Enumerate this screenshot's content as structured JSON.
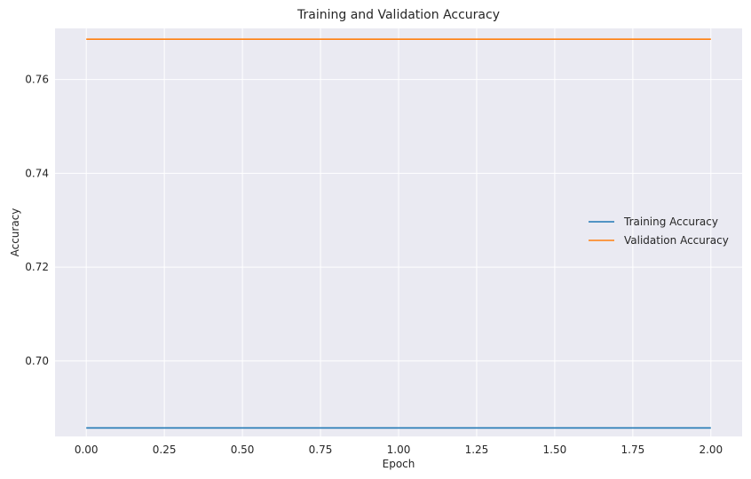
{
  "chart_data": {
    "type": "line",
    "title": "Training and Validation Accuracy",
    "xlabel": "Epoch",
    "ylabel": "Accuracy",
    "x": [
      0,
      1,
      2
    ],
    "xlim": [
      -0.1,
      2.1
    ],
    "ylim": [
      0.6839,
      0.7709
    ],
    "xticks": [
      0.0,
      0.25,
      0.5,
      0.75,
      1.0,
      1.25,
      1.5,
      1.75,
      2.0
    ],
    "xtick_labels": [
      "0.00",
      "0.25",
      "0.50",
      "0.75",
      "1.00",
      "1.25",
      "1.50",
      "1.75",
      "2.00"
    ],
    "yticks": [
      0.7,
      0.72,
      0.74,
      0.76
    ],
    "ytick_labels": [
      "0.70",
      "0.72",
      "0.74",
      "0.76"
    ],
    "grid": true,
    "legend_position": "center-right",
    "background": "#eaeaf2",
    "series": [
      {
        "name": "Training Accuracy",
        "values": [
          0.6857,
          0.6857,
          0.6857
        ],
        "color": "#1f77b4"
      },
      {
        "name": "Validation Accuracy",
        "values": [
          0.7686,
          0.7686,
          0.7686
        ],
        "color": "#ff7f0e"
      }
    ]
  }
}
